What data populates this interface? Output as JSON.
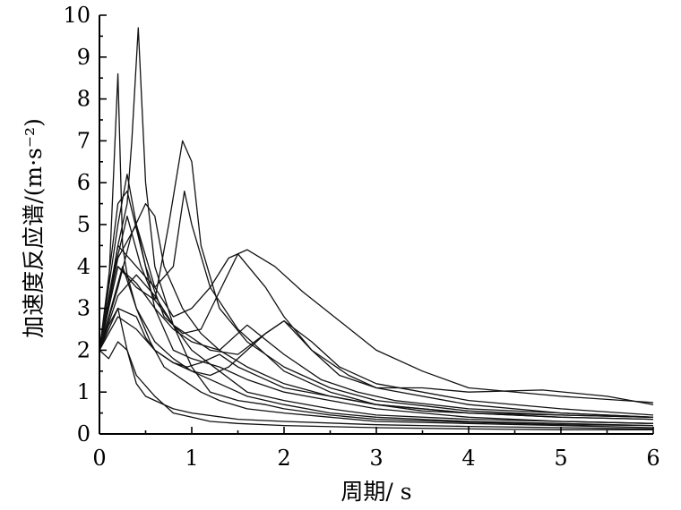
{
  "chart_data": {
    "type": "line",
    "xlabel": "周期/ s",
    "ylabel": "加速度反应谱/(m·s⁻²)",
    "xlim": [
      0,
      6
    ],
    "ylim": [
      0,
      10
    ],
    "x_ticks": [
      "0",
      "1",
      "2",
      "3",
      "4",
      "5",
      "6"
    ],
    "y_ticks": [
      "0",
      "1",
      "2",
      "3",
      "4",
      "5",
      "6",
      "7",
      "8",
      "9",
      "10"
    ],
    "grid": false,
    "legend": "none",
    "series": [
      {
        "x": [
          0,
          0.1,
          0.2,
          0.25,
          0.3,
          0.4,
          0.5,
          0.6,
          0.8,
          1.0,
          1.3,
          1.6,
          2.0,
          2.5,
          3.0,
          4.0,
          5.0,
          6.0
        ],
        "y": [
          2.0,
          3.5,
          8.6,
          4.5,
          3.8,
          3.0,
          2.6,
          2.2,
          1.8,
          1.5,
          1.2,
          0.9,
          0.7,
          0.5,
          0.4,
          0.3,
          0.25,
          0.2
        ]
      },
      {
        "x": [
          0,
          0.1,
          0.2,
          0.3,
          0.35,
          0.42,
          0.5,
          0.6,
          0.8,
          1.0,
          1.3,
          1.6,
          2.0,
          2.5,
          3.0,
          4.0,
          5.0,
          6.0
        ],
        "y": [
          2.0,
          3.0,
          4.5,
          5.5,
          7.0,
          9.7,
          6.0,
          4.0,
          2.6,
          2.0,
          1.5,
          1.0,
          0.8,
          0.6,
          0.45,
          0.35,
          0.3,
          0.25
        ]
      },
      {
        "x": [
          0,
          0.2,
          0.4,
          0.6,
          0.75,
          0.9,
          1.0,
          1.1,
          1.3,
          1.6,
          2.0,
          2.5,
          3.0,
          4.0,
          5.0,
          6.0
        ],
        "y": [
          2.0,
          4.0,
          3.5,
          3.2,
          5.0,
          7.0,
          6.5,
          4.5,
          3.0,
          2.2,
          1.6,
          1.1,
          0.8,
          0.55,
          0.45,
          0.4
        ]
      },
      {
        "x": [
          0,
          0.2,
          0.4,
          0.6,
          0.8,
          0.92,
          1.0,
          1.2,
          1.5,
          2.0,
          2.5,
          3.0,
          4.0,
          5.0,
          6.0
        ],
        "y": [
          2.0,
          4.5,
          4.0,
          3.5,
          4.0,
          5.8,
          5.0,
          3.5,
          2.5,
          1.5,
          1.0,
          0.7,
          0.5,
          0.4,
          0.35
        ]
      },
      {
        "x": [
          0,
          0.2,
          0.4,
          0.6,
          0.8,
          1.0,
          1.2,
          1.4,
          1.6,
          1.9,
          2.2,
          2.6,
          3.0,
          3.5,
          4.0,
          5.0,
          6.0
        ],
        "y": [
          2.0,
          4.2,
          5.0,
          3.5,
          2.8,
          3.0,
          3.5,
          4.2,
          4.4,
          4.0,
          3.4,
          2.7,
          2.0,
          1.5,
          1.1,
          0.9,
          0.75
        ]
      },
      {
        "x": [
          0,
          0.2,
          0.3,
          0.5,
          0.7,
          0.9,
          1.1,
          1.3,
          1.5,
          1.8,
          2.0,
          2.3,
          2.7,
          3.0,
          4.0,
          5.0,
          6.0
        ],
        "y": [
          2.0,
          5.5,
          5.8,
          4.0,
          2.8,
          2.4,
          2.5,
          3.4,
          4.3,
          3.5,
          2.8,
          2.0,
          1.4,
          1.1,
          0.7,
          0.5,
          0.4
        ]
      },
      {
        "x": [
          0,
          0.15,
          0.3,
          0.45,
          0.6,
          0.8,
          1.0,
          1.2,
          1.5,
          1.8,
          2.0,
          2.3,
          2.6,
          3.0,
          3.5,
          4.0,
          4.8,
          5.5,
          6.0
        ],
        "y": [
          2.0,
          3.8,
          5.2,
          4.0,
          3.2,
          2.6,
          2.3,
          2.0,
          1.9,
          2.4,
          2.7,
          2.0,
          1.4,
          1.1,
          1.1,
          1.0,
          1.05,
          0.9,
          0.7
        ]
      },
      {
        "x": [
          0,
          0.2,
          0.3,
          0.4,
          0.6,
          0.8,
          1.0,
          1.3,
          1.6,
          2.0,
          2.5,
          3.0,
          3.5,
          4.0,
          5.0,
          6.0
        ],
        "y": [
          2.0,
          5.0,
          6.2,
          5.0,
          3.0,
          2.0,
          1.8,
          1.6,
          1.3,
          1.0,
          0.8,
          0.6,
          0.5,
          0.4,
          0.3,
          0.25
        ]
      },
      {
        "x": [
          0,
          0.2,
          0.35,
          0.5,
          0.6,
          0.7,
          0.9,
          1.1,
          1.3,
          1.6,
          2.0,
          2.5,
          3.0,
          4.0,
          5.0,
          6.0
        ],
        "y": [
          2.0,
          3.5,
          4.8,
          5.5,
          5.2,
          4.0,
          3.0,
          2.4,
          2.0,
          1.6,
          1.2,
          0.9,
          0.7,
          0.5,
          0.4,
          0.35
        ]
      },
      {
        "x": [
          0,
          0.15,
          0.25,
          0.4,
          0.55,
          0.7,
          0.9,
          1.1,
          1.3,
          1.6,
          2.0,
          2.5,
          3.0,
          4.0,
          5.0,
          6.0
        ],
        "y": [
          2.0,
          3.2,
          4.0,
          3.0,
          2.2,
          1.6,
          1.3,
          1.0,
          0.8,
          0.6,
          0.5,
          0.4,
          0.3,
          0.25,
          0.2,
          0.15
        ]
      },
      {
        "x": [
          0,
          0.1,
          0.2,
          0.3,
          0.4,
          0.5,
          0.6,
          0.8,
          1.0,
          1.5,
          2.0,
          3.0,
          4.0,
          5.0,
          6.0
        ],
        "y": [
          2.0,
          2.6,
          3.0,
          2.0,
          1.2,
          0.9,
          0.8,
          0.6,
          0.5,
          0.35,
          0.3,
          0.22,
          0.18,
          0.15,
          0.12
        ]
      },
      {
        "x": [
          0,
          0.2,
          0.4,
          0.6,
          0.8,
          0.95,
          1.1,
          1.3,
          1.5,
          1.8,
          2.0,
          2.5,
          3.0,
          3.5,
          4.0,
          5.0,
          6.0
        ],
        "y": [
          2.0,
          2.8,
          2.5,
          2.0,
          1.7,
          1.6,
          1.7,
          1.9,
          1.6,
          1.3,
          1.1,
          0.9,
          0.7,
          0.55,
          0.5,
          0.45,
          0.4
        ]
      },
      {
        "x": [
          0,
          0.1,
          0.2,
          0.3,
          0.4,
          0.6,
          0.8,
          1.0,
          1.2,
          1.5,
          2.0,
          3.0,
          4.0,
          5.0,
          6.0
        ],
        "y": [
          2.0,
          1.8,
          2.2,
          2.0,
          1.4,
          0.9,
          0.5,
          0.4,
          0.3,
          0.25,
          0.2,
          0.15,
          0.12,
          0.1,
          0.1
        ]
      },
      {
        "x": [
          0,
          0.2,
          0.4,
          0.5,
          0.6,
          0.8,
          1.0,
          1.2,
          1.4,
          1.6,
          1.8,
          2.0,
          2.3,
          2.6,
          3.0,
          4.0,
          5.0,
          6.0
        ],
        "y": [
          2.0,
          3.0,
          2.8,
          2.3,
          2.0,
          1.7,
          1.5,
          1.4,
          1.6,
          2.0,
          2.4,
          2.7,
          2.2,
          1.6,
          1.2,
          0.8,
          0.6,
          0.45
        ]
      },
      {
        "x": [
          0,
          0.2,
          0.4,
          0.6,
          0.8,
          1.0,
          1.2,
          1.5,
          1.8,
          2.0,
          2.5,
          3.0,
          4.0,
          5.0,
          6.0
        ],
        "y": [
          2.0,
          3.3,
          3.8,
          3.3,
          2.6,
          1.6,
          1.0,
          0.8,
          0.7,
          0.6,
          0.45,
          0.35,
          0.28,
          0.22,
          0.2
        ]
      },
      {
        "x": [
          0,
          0.2,
          0.4,
          0.6,
          0.8,
          1.0,
          1.3,
          1.6,
          2.0,
          2.4,
          2.8,
          3.2,
          4.0,
          5.0,
          6.0
        ],
        "y": [
          2.0,
          4.0,
          3.6,
          3.0,
          2.5,
          2.2,
          2.0,
          2.6,
          1.9,
          1.3,
          1.0,
          0.8,
          0.6,
          0.5,
          0.4
        ]
      }
    ]
  }
}
